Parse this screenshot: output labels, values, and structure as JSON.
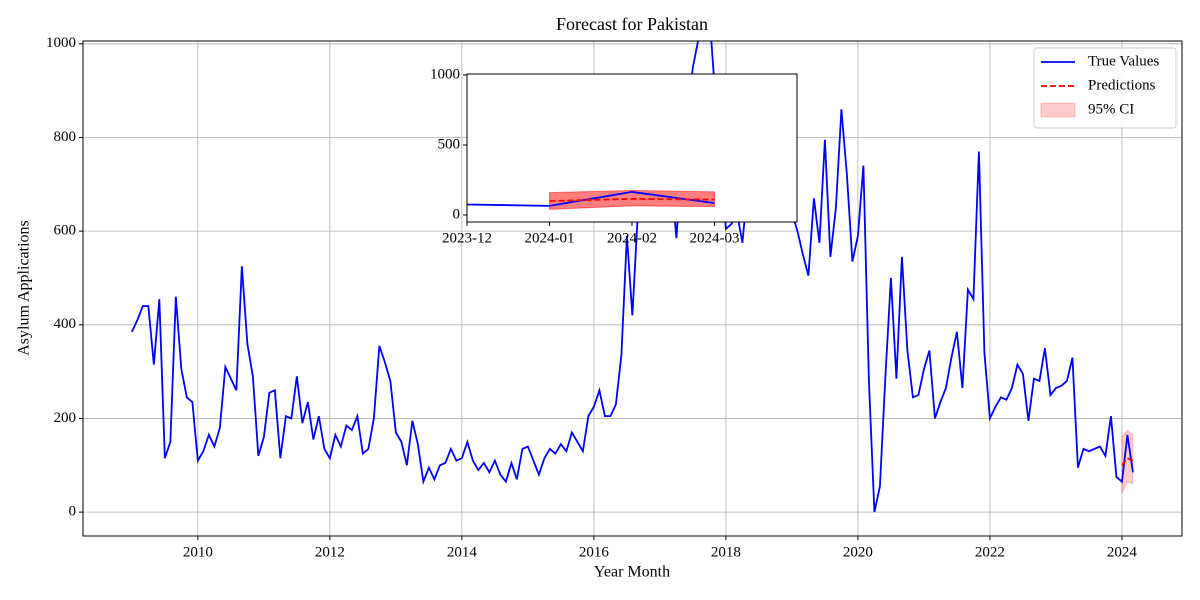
{
  "chart_data": {
    "type": "line",
    "title": "Forecast for Pakistan",
    "xlabel": "Year Month",
    "ylabel": "Asylum Applications",
    "x": [
      "2009-01",
      "2009-02",
      "2009-03",
      "2009-04",
      "2009-05",
      "2009-06",
      "2009-07",
      "2009-08",
      "2009-09",
      "2009-10",
      "2009-11",
      "2009-12",
      "2010-01",
      "2010-02",
      "2010-03",
      "2010-04",
      "2010-05",
      "2010-06",
      "2010-07",
      "2010-08",
      "2010-09",
      "2010-10",
      "2010-11",
      "2010-12",
      "2011-01",
      "2011-02",
      "2011-03",
      "2011-04",
      "2011-05",
      "2011-06",
      "2011-07",
      "2011-08",
      "2011-09",
      "2011-10",
      "2011-11",
      "2011-12",
      "2012-01",
      "2012-02",
      "2012-03",
      "2012-04",
      "2012-05",
      "2012-06",
      "2012-07",
      "2012-08",
      "2012-09",
      "2012-10",
      "2012-11",
      "2012-12",
      "2013-01",
      "2013-02",
      "2013-03",
      "2013-04",
      "2013-05",
      "2013-06",
      "2013-07",
      "2013-08",
      "2013-09",
      "2013-10",
      "2013-11",
      "2013-12",
      "2014-01",
      "2014-02",
      "2014-03",
      "2014-04",
      "2014-05",
      "2014-06",
      "2014-07",
      "2014-08",
      "2014-09",
      "2014-10",
      "2014-11",
      "2014-12",
      "2015-01",
      "2015-02",
      "2015-03",
      "2015-04",
      "2015-05",
      "2015-06",
      "2015-07",
      "2015-08",
      "2015-09",
      "2015-10",
      "2015-11",
      "2015-12",
      "2016-01",
      "2016-02",
      "2016-03",
      "2016-04",
      "2016-05",
      "2016-06",
      "2016-07",
      "2016-08",
      "2016-09",
      "2016-10",
      "2016-11",
      "2016-12",
      "2017-01",
      "2017-02",
      "2017-03",
      "2017-04",
      "2017-05",
      "2017-06",
      "2017-07",
      "2017-08",
      "2017-09",
      "2017-10",
      "2017-11",
      "2017-12",
      "2018-01",
      "2018-02",
      "2018-03",
      "2018-04",
      "2018-05",
      "2018-06",
      "2018-07",
      "2018-08",
      "2018-09",
      "2018-10",
      "2018-11",
      "2018-12",
      "2019-01",
      "2019-02",
      "2019-03",
      "2019-04",
      "2019-05",
      "2019-06",
      "2019-07",
      "2019-08",
      "2019-09",
      "2019-10",
      "2019-11",
      "2019-12",
      "2020-01",
      "2020-02",
      "2020-03",
      "2020-04",
      "2020-05",
      "2020-06",
      "2020-07",
      "2020-08",
      "2020-09",
      "2020-10",
      "2020-11",
      "2020-12",
      "2021-01",
      "2021-02",
      "2021-03",
      "2021-04",
      "2021-05",
      "2021-06",
      "2021-07",
      "2021-08",
      "2021-09",
      "2021-10",
      "2021-11",
      "2021-12",
      "2022-01",
      "2022-02",
      "2022-03",
      "2022-04",
      "2022-05",
      "2022-06",
      "2022-07",
      "2022-08",
      "2022-09",
      "2022-10",
      "2022-11",
      "2022-12",
      "2023-01",
      "2023-02",
      "2023-03",
      "2023-04",
      "2023-05",
      "2023-06",
      "2023-07",
      "2023-08",
      "2023-09",
      "2023-10",
      "2023-11",
      "2023-12",
      "2024-01",
      "2024-02",
      "2024-03"
    ],
    "series": [
      {
        "name": "True Values",
        "color": "#0000ff",
        "style": "solid",
        "values": [
          385,
          410,
          440,
          440,
          315,
          455,
          115,
          150,
          460,
          305,
          245,
          235,
          110,
          130,
          165,
          140,
          180,
          310,
          285,
          260,
          525,
          360,
          290,
          120,
          160,
          255,
          260,
          115,
          205,
          200,
          290,
          190,
          235,
          155,
          205,
          135,
          115,
          165,
          140,
          185,
          175,
          205,
          125,
          135,
          200,
          355,
          320,
          280,
          170,
          150,
          100,
          195,
          145,
          65,
          95,
          70,
          100,
          105,
          135,
          110,
          115,
          150,
          110,
          90,
          105,
          85,
          110,
          80,
          65,
          105,
          70,
          135,
          140,
          110,
          80,
          115,
          135,
          125,
          145,
          130,
          170,
          150,
          130,
          205,
          225,
          260,
          205,
          205,
          230,
          335,
          590,
          420,
          640,
          700,
          750,
          720,
          680,
          700,
          720,
          585,
          750,
          850,
          950,
          1010,
          1065,
          1065,
          900,
          750,
          605,
          615,
          640,
          575,
          700,
          720,
          700,
          680,
          700,
          720,
          680,
          650,
          640,
          600,
          550,
          505,
          670,
          575,
          795,
          545,
          650,
          860,
          720,
          535,
          590,
          740,
          280,
          0,
          55,
          290,
          500,
          285,
          545,
          345,
          245,
          250,
          305,
          345,
          200,
          235,
          265,
          330,
          385,
          265,
          475,
          455,
          770,
          340,
          200,
          225,
          245,
          240,
          265,
          315,
          295,
          195,
          285,
          280,
          350,
          250,
          265,
          270,
          280,
          330,
          95,
          135,
          130,
          135,
          140,
          120,
          205,
          75,
          65,
          165,
          85
        ]
      },
      {
        "name": "Predictions",
        "color": "#ff0000",
        "style": "dashed",
        "x": [
          "2024-01",
          "2024-02",
          "2024-03"
        ],
        "values": [
          100,
          115,
          110
        ]
      }
    ],
    "band": {
      "name": "95% CI",
      "color": "#ff0000",
      "x": [
        "2024-01",
        "2024-02",
        "2024-03"
      ],
      "lower": [
        40,
        65,
        60
      ],
      "upper": [
        160,
        175,
        165
      ]
    },
    "xlim": [
      2008.26,
      2024.91
    ],
    "ylim": [
      -51,
      1006
    ],
    "xticks": [
      2010,
      2012,
      2014,
      2016,
      2018,
      2020,
      2022,
      2024
    ],
    "yticks": [
      0,
      200,
      400,
      600,
      800,
      1000
    ],
    "grid": true,
    "legend": "upper right",
    "inset": {
      "xlim": [
        "2023-12",
        "2024-04"
      ],
      "ylim": [
        -50,
        1007
      ],
      "xticks": [
        "2023-12",
        "2024-01",
        "2024-02",
        "2024-03"
      ],
      "yticks": [
        0,
        500,
        1000
      ],
      "grid": false
    }
  }
}
